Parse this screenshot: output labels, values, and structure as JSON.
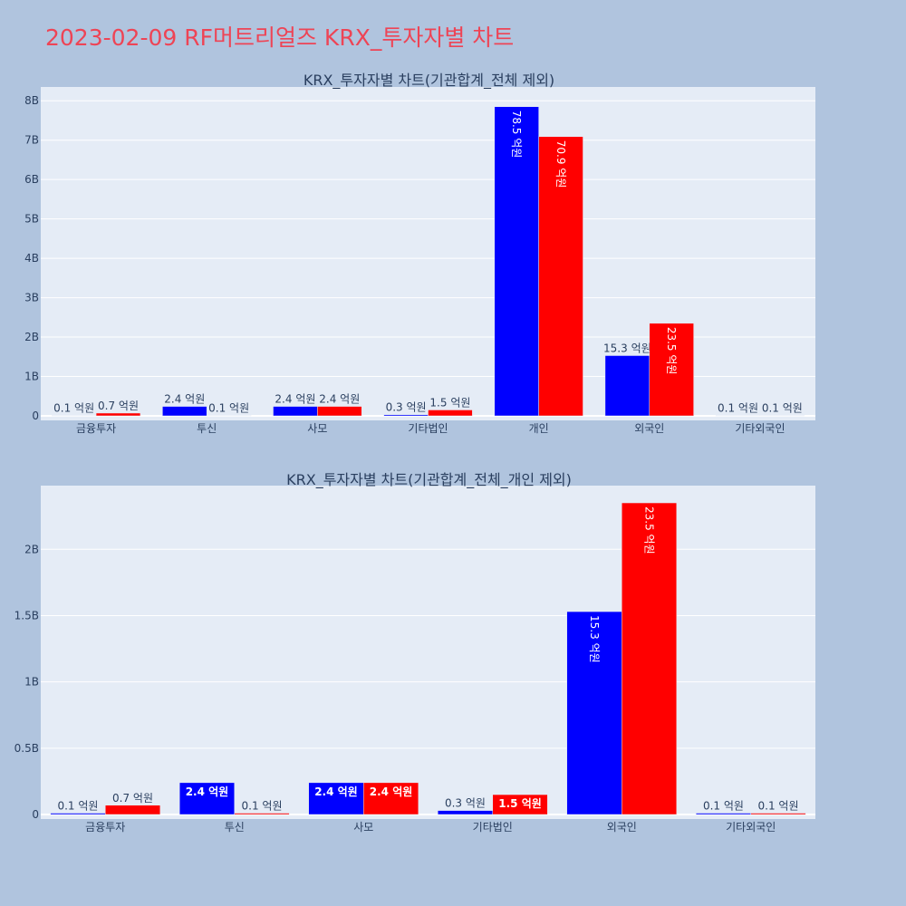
{
  "page": {
    "title": "2023-02-09 RF머트리얼즈 KRX_투자자별 차트"
  },
  "colors": {
    "background": "#b0c4de",
    "plot_bg": "#e5ecf6",
    "title": "#ee4455",
    "series_a": "#0000ff",
    "series_b": "#ff0000"
  },
  "chart_data": [
    {
      "type": "bar",
      "title": "KRX_투자자별 차트(기관합계_전체 제외)",
      "categories": [
        "금융투자",
        "투신",
        "사모",
        "기타법인",
        "개인",
        "외국인",
        "기타외국인"
      ],
      "series": [
        {
          "values": [
            10000000,
            240000000,
            240000000,
            30000000,
            7850000000,
            1530000000,
            10000000
          ],
          "labels": [
            "0.1 억원",
            "2.4 억원",
            "2.4 억원",
            "0.3 억원",
            "78.5 억원",
            "15.3 억원",
            "0.1 억원"
          ]
        },
        {
          "values": [
            70000000,
            10000000,
            240000000,
            150000000,
            7090000000,
            2350000000,
            10000000
          ],
          "labels": [
            "0.7 억원",
            "0.1 억원",
            "2.4 억원",
            "1.5 억원",
            "70.9 억원",
            "23.5 억원",
            "0.1 억원"
          ]
        }
      ],
      "yticks": [
        0,
        1000000000,
        2000000000,
        3000000000,
        4000000000,
        5000000000,
        6000000000,
        7000000000,
        8000000000
      ],
      "ytick_labels": [
        "0",
        "1B",
        "2B",
        "3B",
        "4B",
        "5B",
        "6B",
        "7B",
        "8B"
      ],
      "ylim": [
        0,
        8350000000
      ],
      "grid": true,
      "legend": "none"
    },
    {
      "type": "bar",
      "title": "KRX_투자자별 차트(기관합계_전체_개인 제외)",
      "categories": [
        "금융투자",
        "투신",
        "사모",
        "기타법인",
        "외국인",
        "기타외국인"
      ],
      "series": [
        {
          "values": [
            10000000,
            240000000,
            240000000,
            30000000,
            1530000000,
            10000000
          ],
          "labels": [
            "0.1 억원",
            "2.4 억원",
            "2.4 억원",
            "0.3 억원",
            "15.3 억원",
            "0.1 억원"
          ]
        },
        {
          "values": [
            70000000,
            10000000,
            240000000,
            150000000,
            2350000000,
            10000000
          ],
          "labels": [
            "0.7 억원",
            "0.1 억원",
            "2.4 억원",
            "1.5 억원",
            "23.5 억원",
            "0.1 억원"
          ]
        }
      ],
      "yticks": [
        0,
        500000000,
        1000000000,
        1500000000,
        2000000000
      ],
      "ytick_labels": [
        "0",
        "0.5B",
        "1B",
        "1.5B",
        "2B"
      ],
      "ylim": [
        0,
        2480000000
      ],
      "grid": true,
      "legend": "none"
    }
  ]
}
